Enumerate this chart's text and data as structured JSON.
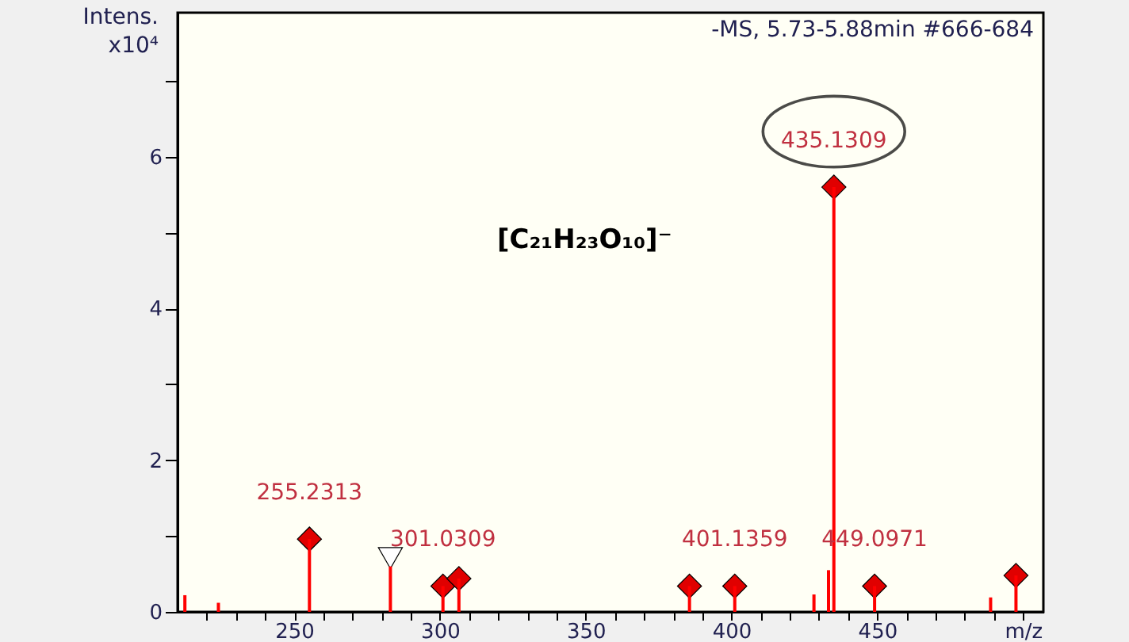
{
  "chart_data": {
    "type": "bar",
    "ylabel": "Intens. x10⁴",
    "annotations": [
      "-MS, 5.73-5.88min #666-684",
      "[C₂₁H₂₃O₁₀]⁻",
      {
        "text": "255.2313",
        "x": 255.2313,
        "y": 0.96
      },
      {
        "text": "301.0309",
        "x": 301.0309,
        "y": 0.34
      },
      {
        "text": "401.1359",
        "x": 401.1359,
        "y": 0.34
      },
      {
        "text": "435.1309",
        "x": 435.1309,
        "y": 5.6
      },
      {
        "text": "449.0971",
        "x": 449.0971,
        "y": 0.34
      }
    ],
    "xlim": [
      210,
      507
    ],
    "ylim": [
      0,
      7.9
    ],
    "xticks": [
      {
        "value": 220,
        "label": null
      },
      {
        "value": 230,
        "label": null
      },
      {
        "value": 240,
        "label": null
      },
      250,
      {
        "value": 260,
        "label": null
      },
      {
        "value": 270,
        "label": null
      },
      {
        "value": 280,
        "label": null
      },
      {
        "value": 290,
        "label": null
      },
      300,
      {
        "value": 310,
        "label": null
      },
      {
        "value": 320,
        "label": null
      },
      {
        "value": 330,
        "label": null
      },
      {
        "value": 340,
        "label": null
      },
      350,
      {
        "value": 360,
        "label": null
      },
      {
        "value": 370,
        "label": null
      },
      {
        "value": 380,
        "label": null
      },
      {
        "value": 390,
        "label": null
      },
      400,
      {
        "value": 410,
        "label": null
      },
      {
        "value": 420,
        "label": null
      },
      {
        "value": 430,
        "label": null
      },
      {
        "value": 440,
        "label": null
      },
      450,
      {
        "value": 460,
        "label": null
      },
      {
        "value": 470,
        "label": null
      },
      {
        "value": 480,
        "label": null
      },
      {
        "value": 490,
        "label": null
      },
      {
        "value": 500,
        "label": "m/z"
      }
    ],
    "yticks": [
      0,
      {
        "value": 1,
        "label": null
      },
      2,
      {
        "value": 3,
        "label": null
      },
      4,
      {
        "value": 5,
        "label": null
      },
      6,
      {
        "value": 7,
        "label": null
      }
    ],
    "grid": false,
    "series": [
      {
        "color": "#ff0000",
        "x": [
          212.5,
          224,
          255.2313,
          283,
          301.0309,
          306.5,
          385.6,
          401.1359,
          428.3,
          433.3,
          435.1309,
          449.0971,
          488.9,
          497.6
        ],
        "values": [
          0.22,
          0.12,
          0.96,
          0.6,
          0.34,
          0.44,
          0.34,
          0.34,
          0.23,
          0.55,
          5.6,
          0.34,
          0.19,
          0.48
        ]
      },
      {
        "type": "scatter",
        "marker": "diamond",
        "color": "#e00000",
        "x": [
          255.2313,
          301.0309,
          306.5,
          385.6,
          401.1359,
          435.1309,
          449.0971,
          497.6
        ],
        "values": [
          0.96,
          0.34,
          0.44,
          0.34,
          0.34,
          5.6,
          0.34,
          0.48
        ]
      },
      {
        "type": "scatter",
        "marker": "triangle",
        "color": "#ffffff",
        "x": [
          283
        ],
        "values": [
          0.71
        ]
      }
    ]
  }
}
